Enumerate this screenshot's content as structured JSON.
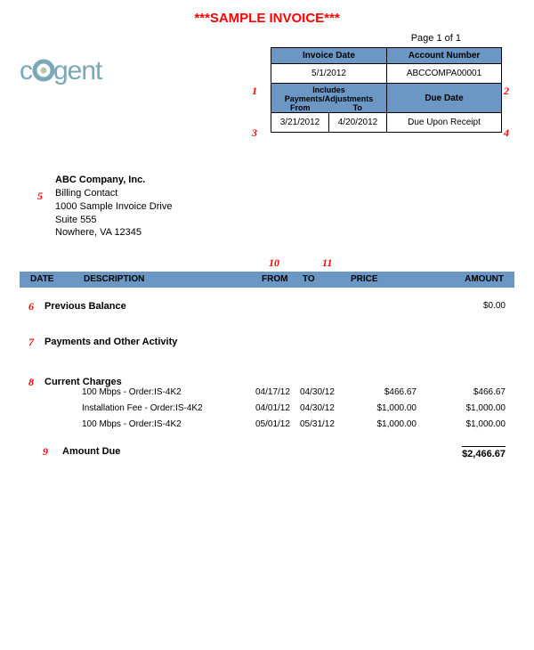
{
  "title": "***SAMPLE INVOICE***",
  "page": "Page 1 of 1",
  "logo": {
    "text_left": "c",
    "text_right": "gent",
    "color": "#7aa8b8",
    "fontsize": 30
  },
  "info": {
    "headers1": [
      "Invoice Date",
      "Account Number"
    ],
    "row1": [
      "5/1/2012",
      "ABCCOMPA00001"
    ],
    "headers2_span": "Includes Payments/Adjustments",
    "headers2_sub": [
      "From",
      "To"
    ],
    "headers2_right": "Due Date",
    "row2": [
      "3/21/2012",
      "4/20/2012",
      "Due Upon Receipt"
    ]
  },
  "notes": {
    "n1": "1",
    "n2": "2",
    "n3": "3",
    "n4": "4",
    "n5": "5",
    "n6": "6",
    "n7": "7",
    "n8": "8",
    "n9": "9",
    "n10": "10",
    "n11": "11"
  },
  "address": {
    "name": "ABC Company, Inc.",
    "contact": "Billing Contact",
    "street": "1000 Sample Invoice Drive",
    "suite": "Suite 555",
    "city": "Nowhere, VA  12345"
  },
  "columns": {
    "date": "DATE",
    "desc": "DESCRIPTION",
    "from": "FROM",
    "to": "TO",
    "price": "PRICE",
    "amount": "AMOUNT"
  },
  "sections": {
    "previous": "Previous Balance",
    "previous_amt": "$0.00",
    "payments": "Payments and Other Activity",
    "current": "Current Charges",
    "amount_due": "Amount Due",
    "amount_due_val": "$2,466.67"
  },
  "charges": [
    {
      "desc": "100 Mbps - Order:IS-4K2",
      "from": "04/17/12",
      "to": "04/30/12",
      "price": "$466.67",
      "amount": "$466.67"
    },
    {
      "desc": "Installation Fee - Order:IS-4K2",
      "from": "04/01/12",
      "to": "04/30/12",
      "price": "$1,000.00",
      "amount": "$1,000.00"
    },
    {
      "desc": "100 Mbps - Order:IS-4K2",
      "from": "05/01/12",
      "to": "05/31/12",
      "price": "$1,000.00",
      "amount": "$1,000.00"
    }
  ],
  "colors": {
    "header_bg": "#6a97c4",
    "note": "#ff0000"
  }
}
